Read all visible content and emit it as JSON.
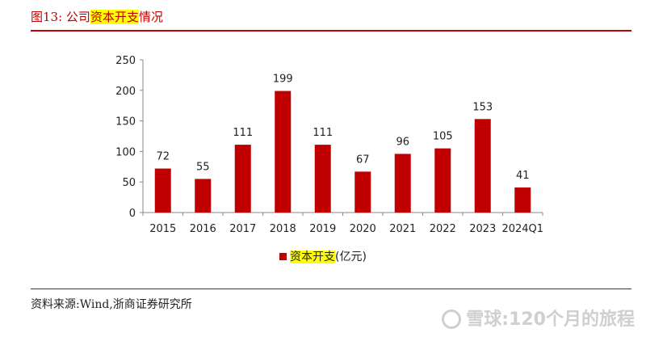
{
  "figure": {
    "title_prefix": "图13:  公司",
    "title_highlight": "资本开支",
    "title_suffix": "情况",
    "source": "资料来源:Wind,浙商证券研究所",
    "watermark": "雪球:120个月的旅程"
  },
  "legend": {
    "label_highlight": "资本开支",
    "label_unit": "(亿元)"
  },
  "colors": {
    "bar": "#c00000",
    "title": "#c00000",
    "highlight": "#ffff00"
  },
  "chart_data": {
    "type": "bar",
    "categories": [
      "2015",
      "2016",
      "2017",
      "2018",
      "2019",
      "2020",
      "2021",
      "2022",
      "2023",
      "2024Q1"
    ],
    "series": [
      {
        "name": "资本开支(亿元)",
        "values": [
          72,
          55,
          111,
          199,
          111,
          67,
          96,
          105,
          153,
          41
        ]
      }
    ],
    "yticks": [
      0,
      50,
      100,
      150,
      200,
      250
    ],
    "ylim": [
      0,
      250
    ],
    "grid": false,
    "legend_position": "bottom"
  }
}
